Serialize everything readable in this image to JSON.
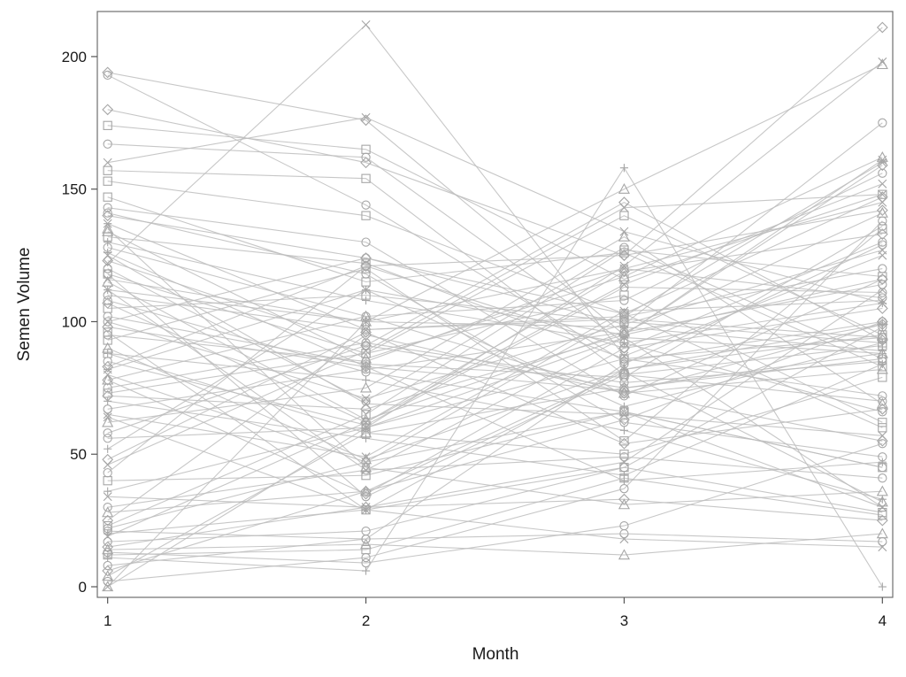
{
  "chart_data": {
    "type": "line",
    "title": "",
    "xlabel": "Month",
    "ylabel": "Semen Volume",
    "x": [
      1,
      2,
      3,
      4
    ],
    "xticks": [
      "1",
      "2",
      "3",
      "4"
    ],
    "yticks": [
      "0",
      "50",
      "100",
      "150",
      "200"
    ],
    "xlim": [
      0.96,
      4.04
    ],
    "ylim": [
      -4,
      217
    ],
    "grid": false,
    "legend": "none",
    "line_color": "#bdbdbd",
    "marker_color": "#a6a6a6",
    "series": [
      {
        "values": [
          194,
          176,
          95,
          159
        ],
        "marker": "diamond"
      },
      {
        "values": [
          193,
          144,
          85,
          100
        ],
        "marker": "circle"
      },
      {
        "values": [
          180,
          160,
          125,
          142
        ],
        "marker": "diamond"
      },
      {
        "values": [
          174,
          165,
          116,
          148
        ],
        "marker": "square"
      },
      {
        "values": [
          167,
          162,
          92,
          66
        ],
        "marker": "circle"
      },
      {
        "values": [
          160,
          177,
          134,
          107
        ],
        "marker": "x"
      },
      {
        "values": [
          157,
          154,
          80,
          91
        ],
        "marker": "square"
      },
      {
        "values": [
          147,
          115,
          126,
          83
        ],
        "marker": "square"
      },
      {
        "values": [
          143,
          130,
          72,
          116
        ],
        "marker": "circle"
      },
      {
        "values": [
          140,
          124,
          103,
          147
        ],
        "marker": "diamond"
      },
      {
        "values": [
          137,
          97,
          102,
          160
        ],
        "marker": "star"
      },
      {
        "values": [
          134,
          86,
          117,
          162
        ],
        "marker": "triangle"
      },
      {
        "values": [
          132,
          122,
          86,
          94
        ],
        "marker": "square"
      },
      {
        "values": [
          130,
          108,
          92,
          107
        ],
        "marker": "plus"
      },
      {
        "values": [
          128,
          102,
          108,
          156
        ],
        "marker": "circle"
      },
      {
        "values": [
          125,
          69,
          65,
          57
        ],
        "marker": "x"
      },
      {
        "values": [
          123,
          91,
          145,
          93
        ],
        "marker": "diamond"
      },
      {
        "values": [
          122,
          212,
          87,
          125
        ],
        "marker": "x"
      },
      {
        "values": [
          120,
          70,
          128,
          86
        ],
        "marker": "circle"
      },
      {
        "values": [
          118,
          88,
          140,
          95
        ],
        "marker": "square"
      },
      {
        "values": [
          115,
          63,
          96,
          141
        ],
        "marker": "triangle"
      },
      {
        "values": [
          112,
          100,
          98,
          89
        ],
        "marker": "plus"
      },
      {
        "values": [
          110,
          97,
          101,
          94
        ],
        "marker": "circle"
      },
      {
        "values": [
          107,
          62,
          119,
          133
        ],
        "marker": "diamond"
      },
      {
        "values": [
          105,
          110,
          100,
          92
        ],
        "marker": "square"
      },
      {
        "values": [
          102,
          84,
          79,
          136
        ],
        "marker": "circle"
      },
      {
        "values": [
          100,
          71,
          99,
          127
        ],
        "marker": "x"
      },
      {
        "values": [
          98,
          83,
          74,
          55
        ],
        "marker": "diamond"
      },
      {
        "values": [
          95,
          85,
          120,
          109
        ],
        "marker": "circle"
      },
      {
        "values": [
          93,
          120,
          55,
          135
        ],
        "marker": "square"
      },
      {
        "values": [
          90,
          48,
          82,
          95
        ],
        "marker": "triangle"
      },
      {
        "values": [
          88,
          78,
          59,
          33
        ],
        "marker": "plus"
      },
      {
        "values": [
          85,
          61,
          113,
          111
        ],
        "marker": "circle"
      },
      {
        "values": [
          82,
          112,
          95,
          161
        ],
        "marker": "star"
      },
      {
        "values": [
          80,
          47,
          66,
          30
        ],
        "marker": "x"
      },
      {
        "values": [
          78,
          35,
          90,
          105
        ],
        "marker": "diamond"
      },
      {
        "values": [
          75,
          92,
          77,
          85
        ],
        "marker": "circle"
      },
      {
        "values": [
          73,
          88,
          110,
          62
        ],
        "marker": "square"
      },
      {
        "values": [
          70,
          56,
          42,
          84
        ],
        "marker": "plus"
      },
      {
        "values": [
          67,
          82,
          96,
          114
        ],
        "marker": "circle"
      },
      {
        "values": [
          65,
          49,
          104,
          108
        ],
        "marker": "x"
      },
      {
        "values": [
          62,
          75,
          132,
          69
        ],
        "marker": "triangle"
      },
      {
        "values": [
          58,
          91,
          75,
          86
        ],
        "marker": "circle"
      },
      {
        "values": [
          56,
          60,
          86,
          72
        ],
        "marker": "circle"
      },
      {
        "values": [
          52,
          112,
          68,
          92
        ],
        "marker": "plus"
      },
      {
        "values": [
          48,
          96,
          54,
          67
        ],
        "marker": "diamond"
      },
      {
        "values": [
          46,
          89,
          143,
          148
        ],
        "marker": "x"
      },
      {
        "values": [
          43,
          121,
          90,
          130
        ],
        "marker": "circle"
      },
      {
        "values": [
          40,
          42,
          66,
          45
        ],
        "marker": "square"
      },
      {
        "values": [
          36,
          60,
          94,
          88
        ],
        "marker": "plus"
      },
      {
        "values": [
          34,
          30,
          47,
          112
        ],
        "marker": "x"
      },
      {
        "values": [
          30,
          44,
          49,
          41
        ],
        "marker": "circle"
      },
      {
        "values": [
          28,
          36,
          81,
          32
        ],
        "marker": "triangle"
      },
      {
        "values": [
          25,
          95,
          73,
          99
        ],
        "marker": "diamond"
      },
      {
        "values": [
          23,
          65,
          127,
          117
        ],
        "marker": "square"
      },
      {
        "values": [
          22,
          47,
          102,
          120
        ],
        "marker": "circle"
      },
      {
        "values": [
          20,
          29,
          82,
          99
        ],
        "marker": "plus"
      },
      {
        "values": [
          19,
          62,
          114,
          152
        ],
        "marker": "x"
      },
      {
        "values": [
          17,
          21,
          45,
          98
        ],
        "marker": "circle"
      },
      {
        "values": [
          15,
          30,
          33,
          25
        ],
        "marker": "diamond"
      },
      {
        "values": [
          14,
          16,
          12,
          20
        ],
        "marker": "triangle"
      },
      {
        "values": [
          13,
          9,
          23,
          54
        ],
        "marker": "circle"
      },
      {
        "values": [
          12,
          14,
          41,
          27
        ],
        "marker": "square"
      },
      {
        "values": [
          11,
          6,
          158,
          0
        ],
        "marker": "plus"
      },
      {
        "values": [
          8,
          18,
          20,
          17
        ],
        "marker": "circle"
      },
      {
        "values": [
          6,
          36,
          63,
          100
        ],
        "marker": "diamond"
      },
      {
        "values": [
          4,
          58,
          75,
          88
        ],
        "marker": "triangle"
      },
      {
        "values": [
          2,
          11,
          37,
          138
        ],
        "marker": "circle"
      },
      {
        "values": [
          0,
          100,
          150,
          197
        ],
        "marker": "triangle"
      },
      {
        "values": [
          0,
          60,
          121,
          198
        ],
        "marker": "x"
      },
      {
        "values": [
          118,
          34,
          80,
          70
        ],
        "marker": "circle"
      },
      {
        "values": [
          135,
          45,
          31,
          36
        ],
        "marker": "triangle"
      },
      {
        "values": [
          112,
          44,
          94,
          30
        ],
        "marker": "x"
      },
      {
        "values": [
          108,
          81,
          66,
          45
        ],
        "marker": "circle"
      },
      {
        "values": [
          96,
          29,
          45,
          28
        ],
        "marker": "square"
      },
      {
        "values": [
          83,
          121,
          125,
          211
        ],
        "marker": "diamond"
      },
      {
        "values": [
          64,
          29,
          18,
          15
        ],
        "marker": "x"
      },
      {
        "values": [
          100,
          124,
          99,
          175
        ],
        "marker": "circle"
      },
      {
        "values": [
          153,
          140,
          103,
          60
        ],
        "marker": "square"
      },
      {
        "values": [
          141,
          118,
          62,
          49
        ],
        "marker": "circle"
      },
      {
        "values": [
          126,
          83,
          40,
          47
        ],
        "marker": "plus"
      },
      {
        "values": [
          78,
          102,
          73,
          82
        ],
        "marker": "triangle"
      },
      {
        "values": [
          88,
          58,
          50,
          79
        ],
        "marker": "square"
      },
      {
        "values": [
          21,
          18,
          84,
          129
        ],
        "marker": "circle"
      },
      {
        "values": [
          116,
          100,
          120,
          145
        ],
        "marker": "x"
      },
      {
        "values": [
          72,
          67,
          95,
          116
        ],
        "marker": "diamond"
      }
    ]
  }
}
